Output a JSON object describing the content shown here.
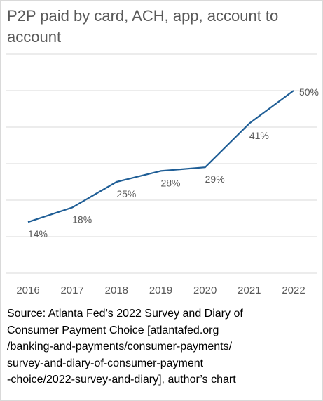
{
  "chart_data": {
    "type": "line",
    "title": "P2P paid by card, ACH, app,  account to account",
    "categories": [
      "2016",
      "2017",
      "2018",
      "2019",
      "2020",
      "2021",
      "2022"
    ],
    "series": [
      {
        "values": [
          14,
          18,
          25,
          28,
          29,
          41,
          50
        ],
        "labels": [
          "14%",
          "18%",
          "25%",
          "28%",
          "29%",
          "41%",
          "50%"
        ]
      }
    ],
    "ylim": [
      0,
      60
    ],
    "grid": true,
    "legend": "none",
    "colors": {
      "line": "#1f5e96",
      "grid": "#d9d9d9",
      "text": "#595959"
    }
  },
  "footer": {
    "source": "Source: Atlanta Fed’s 2022 Survey and Diary of\nConsumer Payment Choice [atlantafed.org\n/banking-and-payments/consumer-payments/\nsurvey-and-diary-of-consumer-payment\n-choice/2022-survey-and-diary], author’s chart"
  }
}
